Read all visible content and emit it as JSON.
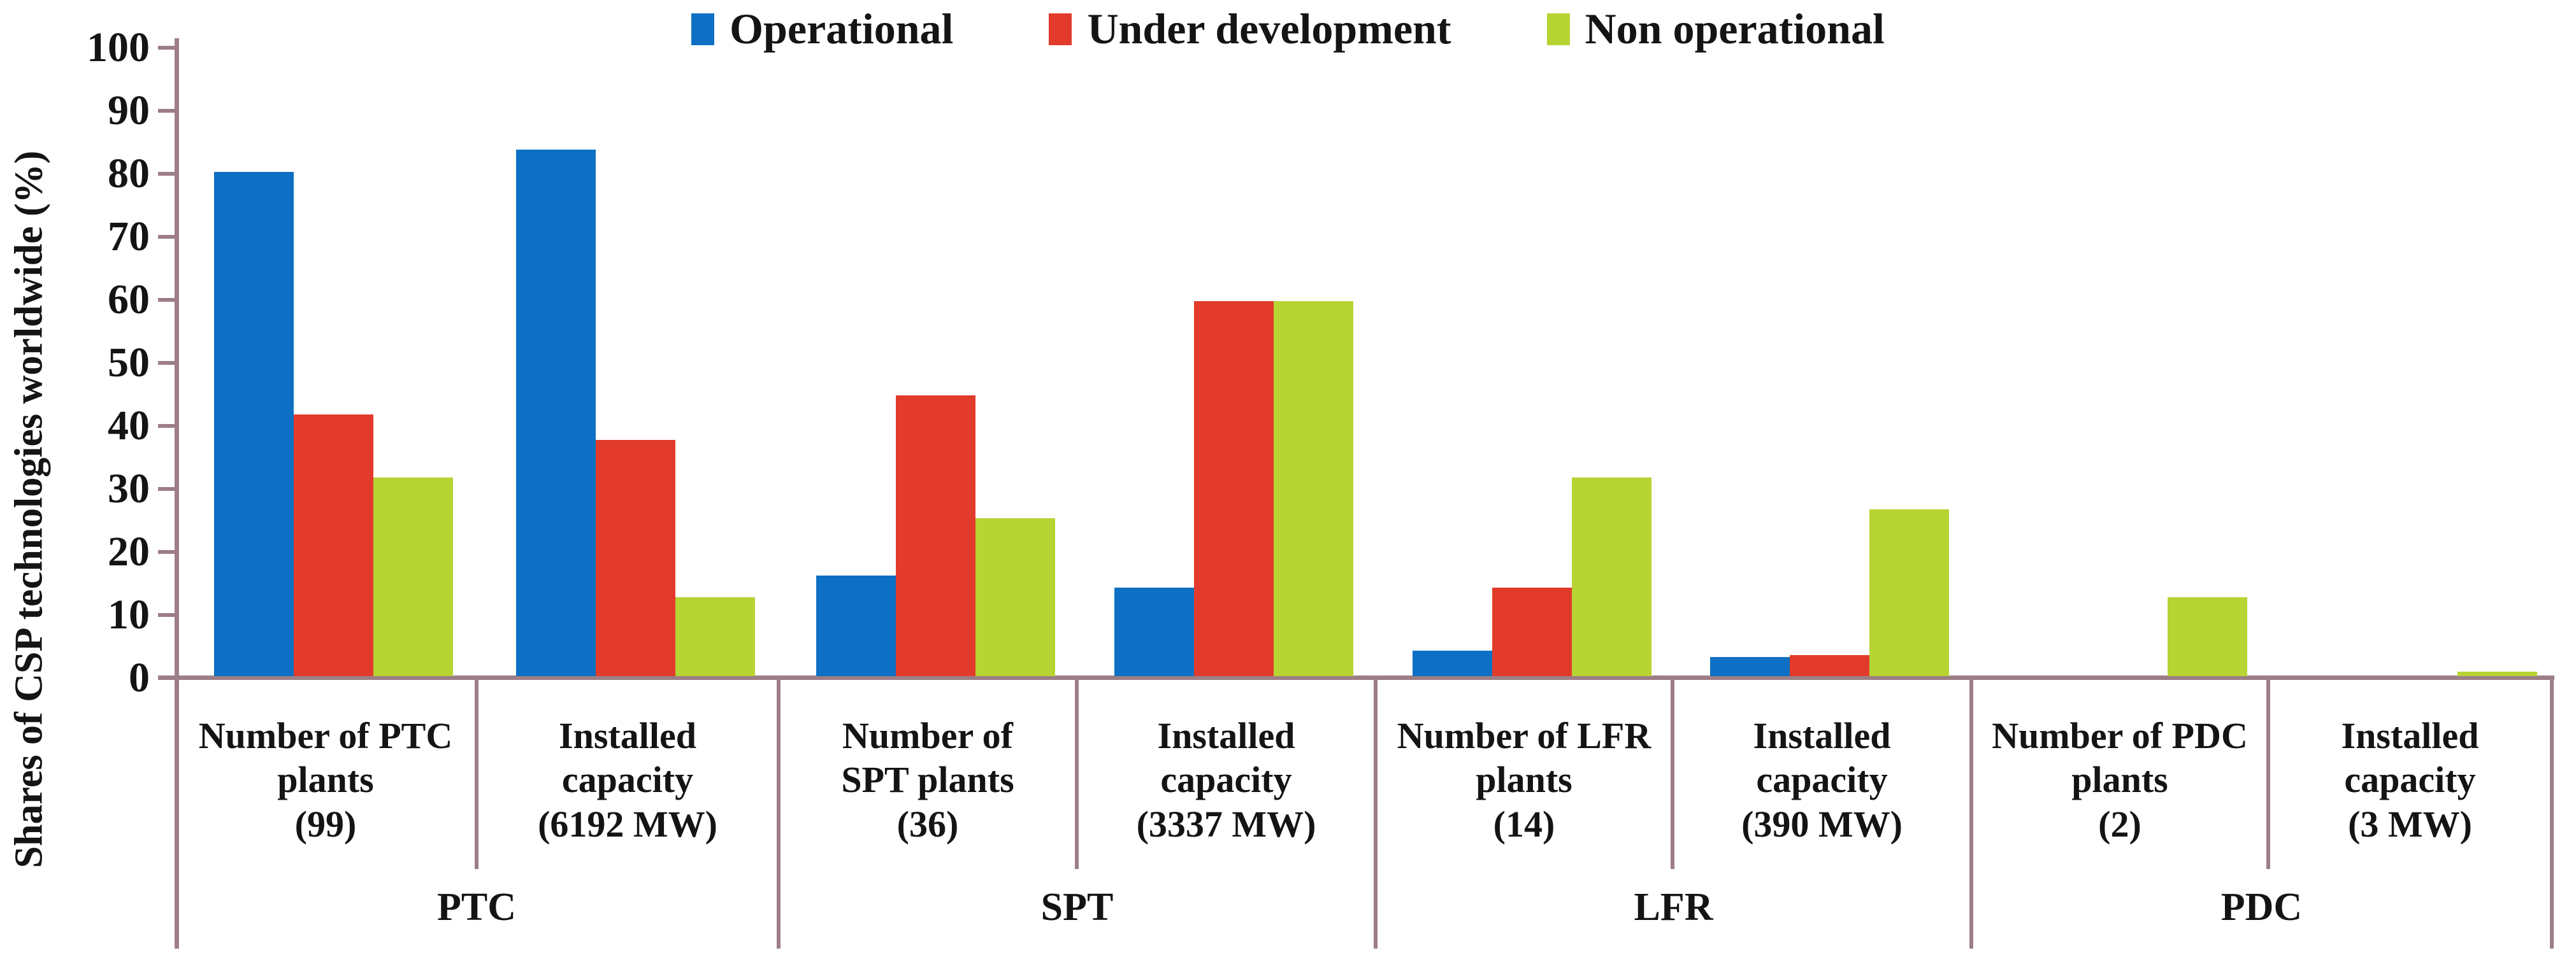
{
  "figure": {
    "background_color": "#ffffff",
    "axis_color": "#9d7e86",
    "text_color": "#141414"
  },
  "chart_data": {
    "type": "bar",
    "title": "",
    "ylabel": "Shares of CSP technologies worldwide (%)",
    "xlabel": "",
    "ylim": [
      0,
      100
    ],
    "yticks": [
      0,
      10,
      20,
      30,
      40,
      50,
      60,
      70,
      80,
      90,
      100
    ],
    "grid": "off",
    "legend_position": "top-center",
    "groups": [
      {
        "key": "ptc",
        "label": "PTC"
      },
      {
        "key": "spt",
        "label": "SPT"
      },
      {
        "key": "lfr",
        "label": "LFR"
      },
      {
        "key": "pdc",
        "label": "PDC"
      }
    ],
    "categories": [
      {
        "key": "ptc-plants",
        "group": "PTC",
        "label": "Number of PTC plants (99)",
        "lines": [
          "Number of PTC",
          "plants",
          "(99)"
        ]
      },
      {
        "key": "ptc-capacity",
        "group": "PTC",
        "label": "Installed capacity (6192 MW)",
        "lines": [
          "Installed",
          "capacity",
          "(6192 MW)"
        ]
      },
      {
        "key": "spt-plants",
        "group": "SPT",
        "label": "Number of SPT plants (36)",
        "lines": [
          "Number of",
          "SPT plants",
          "(36)"
        ]
      },
      {
        "key": "spt-capacity",
        "group": "SPT",
        "label": "Installed capacity (3337 MW)",
        "lines": [
          "Installed",
          "capacity",
          "(3337 MW)"
        ]
      },
      {
        "key": "lfr-plants",
        "group": "LFR",
        "label": "Number of LFR plants (14)",
        "lines": [
          "Number of LFR",
          "plants",
          "(14)"
        ]
      },
      {
        "key": "lfr-capacity",
        "group": "LFR",
        "label": "Installed capacity (390 MW)",
        "lines": [
          "Installed",
          "capacity",
          "(390 MW)"
        ]
      },
      {
        "key": "pdc-plants",
        "group": "PDC",
        "label": "Number of PDC plants (2)",
        "lines": [
          "Number of PDC",
          "plants",
          "(2)"
        ]
      },
      {
        "key": "pdc-capacity",
        "group": "PDC",
        "label": "Installed capacity (3 MW)",
        "lines": [
          "Installed",
          "capacity",
          "(3 MW)"
        ]
      }
    ],
    "series": [
      {
        "key": "operational",
        "name": "Operational",
        "color": "#0d70c4",
        "values": [
          80,
          83.5,
          16,
          14,
          4,
          3,
          0,
          0
        ]
      },
      {
        "key": "under-development",
        "name": "Under development",
        "color": "#e23b2b",
        "values": [
          41.5,
          37.5,
          44.5,
          59.5,
          14,
          3.3,
          0,
          0
        ]
      },
      {
        "key": "non-operational",
        "name": "Non operational",
        "color": "#b6d433",
        "values": [
          31.5,
          12.5,
          25,
          59.5,
          31.5,
          26.5,
          12.5,
          0.7
        ]
      }
    ]
  }
}
